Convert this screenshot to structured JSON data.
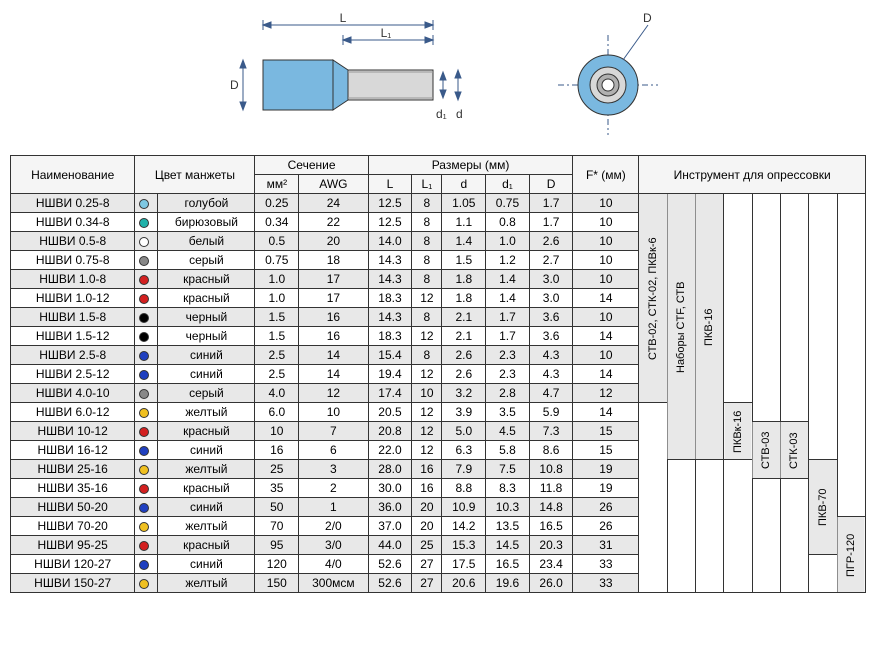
{
  "diagram": {
    "labels": {
      "L": "L",
      "L1": "L₁",
      "D": "D",
      "d": "d",
      "d1": "d₁"
    },
    "ferrule_body_color": "#7ab8e0",
    "ferrule_tube_color": "#d0d0d0",
    "front_outer_color": "#7ab8e0",
    "line_color": "#3a5a8a"
  },
  "headers": {
    "name": "Наименование",
    "color": "Цвет манжеты",
    "section": "Сечение",
    "mm2": "мм²",
    "awg": "AWG",
    "dimensions": "Размеры (мм)",
    "L": "L",
    "L1": "L₁",
    "d": "d",
    "d1": "d₁",
    "D": "D",
    "F": "F* (мм)",
    "tools": "Инструмент для опрессовки"
  },
  "tools": [
    "СТВ-02, СТК-02, ПКВк-6",
    "Наборы CTF, СТВ",
    "ПКВ-16",
    "ПКВк-16",
    "СТВ-03",
    "СТК-03",
    "ПКВ-70",
    "ПГР-120"
  ],
  "tool_spans": [
    {
      "start": 0,
      "end": 11
    },
    {
      "start": 0,
      "end": 14
    },
    {
      "start": 0,
      "end": 14
    },
    {
      "start": 11,
      "end": 14
    },
    {
      "start": 12,
      "end": 15
    },
    {
      "start": 12,
      "end": 15
    },
    {
      "start": 14,
      "end": 19
    },
    {
      "start": 17,
      "end": 21
    }
  ],
  "rows": [
    {
      "name": "НШВИ 0.25-8",
      "swatch": "#7ec8e3",
      "color": "голубой",
      "mm2": "0.25",
      "awg": "24",
      "L": "12.5",
      "L1": "8",
      "d": "1.05",
      "d1": "0.75",
      "D": "1.7",
      "F": "10"
    },
    {
      "name": "НШВИ 0.34-8",
      "swatch": "#20b2aa",
      "color": "бирюзовый",
      "mm2": "0.34",
      "awg": "22",
      "L": "12.5",
      "L1": "8",
      "d": "1.1",
      "d1": "0.8",
      "D": "1.7",
      "F": "10"
    },
    {
      "name": "НШВИ 0.5-8",
      "swatch": "#ffffff",
      "color": "белый",
      "mm2": "0.5",
      "awg": "20",
      "L": "14.0",
      "L1": "8",
      "d": "1.4",
      "d1": "1.0",
      "D": "2.6",
      "F": "10"
    },
    {
      "name": "НШВИ 0.75-8",
      "swatch": "#888888",
      "color": "серый",
      "mm2": "0.75",
      "awg": "18",
      "L": "14.3",
      "L1": "8",
      "d": "1.5",
      "d1": "1.2",
      "D": "2.7",
      "F": "10"
    },
    {
      "name": "НШВИ 1.0-8",
      "swatch": "#d32020",
      "color": "красный",
      "mm2": "1.0",
      "awg": "17",
      "L": "14.3",
      "L1": "8",
      "d": "1.8",
      "d1": "1.4",
      "D": "3.0",
      "F": "10"
    },
    {
      "name": "НШВИ 1.0-12",
      "swatch": "#d32020",
      "color": "красный",
      "mm2": "1.0",
      "awg": "17",
      "L": "18.3",
      "L1": "12",
      "d": "1.8",
      "d1": "1.4",
      "D": "3.0",
      "F": "14"
    },
    {
      "name": "НШВИ 1.5-8",
      "swatch": "#000000",
      "color": "черный",
      "mm2": "1.5",
      "awg": "16",
      "L": "14.3",
      "L1": "8",
      "d": "2.1",
      "d1": "1.7",
      "D": "3.6",
      "F": "10"
    },
    {
      "name": "НШВИ 1.5-12",
      "swatch": "#000000",
      "color": "черный",
      "mm2": "1.5",
      "awg": "16",
      "L": "18.3",
      "L1": "12",
      "d": "2.1",
      "d1": "1.7",
      "D": "3.6",
      "F": "14"
    },
    {
      "name": "НШВИ 2.5-8",
      "swatch": "#2040c0",
      "color": "синий",
      "mm2": "2.5",
      "awg": "14",
      "L": "15.4",
      "L1": "8",
      "d": "2.6",
      "d1": "2.3",
      "D": "4.3",
      "F": "10"
    },
    {
      "name": "НШВИ 2.5-12",
      "swatch": "#2040c0",
      "color": "синий",
      "mm2": "2.5",
      "awg": "14",
      "L": "19.4",
      "L1": "12",
      "d": "2.6",
      "d1": "2.3",
      "D": "4.3",
      "F": "14"
    },
    {
      "name": "НШВИ 4.0-10",
      "swatch": "#888888",
      "color": "серый",
      "mm2": "4.0",
      "awg": "12",
      "L": "17.4",
      "L1": "10",
      "d": "3.2",
      "d1": "2.8",
      "D": "4.7",
      "F": "12"
    },
    {
      "name": "НШВИ 6.0-12",
      "swatch": "#f0c020",
      "color": "желтый",
      "mm2": "6.0",
      "awg": "10",
      "L": "20.5",
      "L1": "12",
      "d": "3.9",
      "d1": "3.5",
      "D": "5.9",
      "F": "14"
    },
    {
      "name": "НШВИ 10-12",
      "swatch": "#d32020",
      "color": "красный",
      "mm2": "10",
      "awg": "7",
      "L": "20.8",
      "L1": "12",
      "d": "5.0",
      "d1": "4.5",
      "D": "7.3",
      "F": "15"
    },
    {
      "name": "НШВИ 16-12",
      "swatch": "#2040c0",
      "color": "синий",
      "mm2": "16",
      "awg": "6",
      "L": "22.0",
      "L1": "12",
      "d": "6.3",
      "d1": "5.8",
      "D": "8.6",
      "F": "15"
    },
    {
      "name": "НШВИ 25-16",
      "swatch": "#f0c020",
      "color": "желтый",
      "mm2": "25",
      "awg": "3",
      "L": "28.0",
      "L1": "16",
      "d": "7.9",
      "d1": "7.5",
      "D": "10.8",
      "F": "19"
    },
    {
      "name": "НШВИ 35-16",
      "swatch": "#d32020",
      "color": "красный",
      "mm2": "35",
      "awg": "2",
      "L": "30.0",
      "L1": "16",
      "d": "8.8",
      "d1": "8.3",
      "D": "11.8",
      "F": "19"
    },
    {
      "name": "НШВИ 50-20",
      "swatch": "#2040c0",
      "color": "синий",
      "mm2": "50",
      "awg": "1",
      "L": "36.0",
      "L1": "20",
      "d": "10.9",
      "d1": "10.3",
      "D": "14.8",
      "F": "26"
    },
    {
      "name": "НШВИ 70-20",
      "swatch": "#f0c020",
      "color": "желтый",
      "mm2": "70",
      "awg": "2/0",
      "L": "37.0",
      "L1": "20",
      "d": "14.2",
      "d1": "13.5",
      "D": "16.5",
      "F": "26"
    },
    {
      "name": "НШВИ 95-25",
      "swatch": "#d32020",
      "color": "красный",
      "mm2": "95",
      "awg": "3/0",
      "L": "44.0",
      "L1": "25",
      "d": "15.3",
      "d1": "14.5",
      "D": "20.3",
      "F": "31"
    },
    {
      "name": "НШВИ 120-27",
      "swatch": "#2040c0",
      "color": "синий",
      "mm2": "120",
      "awg": "4/0",
      "L": "52.6",
      "L1": "27",
      "d": "17.5",
      "d1": "16.5",
      "D": "23.4",
      "F": "33"
    },
    {
      "name": "НШВИ 150-27",
      "swatch": "#f0c020",
      "color": "желтый",
      "mm2": "150",
      "awg": "300мсм",
      "L": "52.6",
      "L1": "27",
      "d": "20.6",
      "d1": "19.6",
      "D": "26.0",
      "F": "33"
    }
  ]
}
